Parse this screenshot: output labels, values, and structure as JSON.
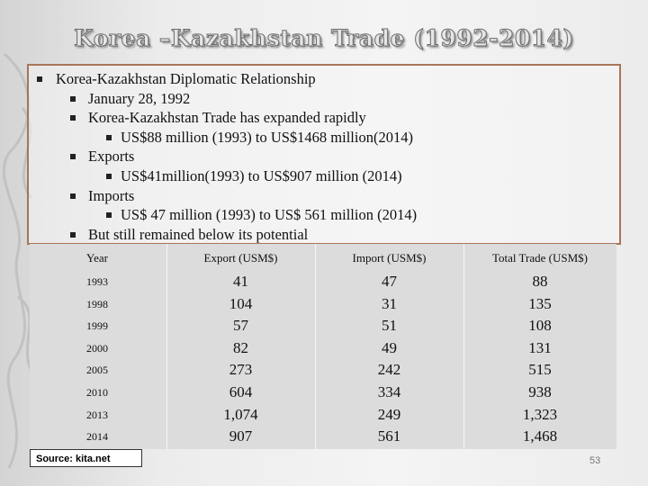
{
  "title": "Korea –Kazakhstan Trade (1992-2014)",
  "bullets": [
    {
      "level": 1,
      "text": "Korea-Kazakhstan Diplomatic Relationship"
    },
    {
      "level": 2,
      "text": "January 28, 1992"
    },
    {
      "level": 2,
      "text": "Korea-Kazakhstan Trade has expanded rapidly"
    },
    {
      "level": 3,
      "text": "US$88 million (1993) to US$1468 million(2014)"
    },
    {
      "level": 2,
      "text": "Exports"
    },
    {
      "level": 3,
      "text": "US$41million(1993) to US$907 million (2014)"
    },
    {
      "level": 2,
      "text": "Imports"
    },
    {
      "level": 3,
      "text": "US$ 47 million (1993) to US$ 561 million (2014)"
    },
    {
      "level": 2,
      "text": "But still remained below its potential"
    }
  ],
  "table": {
    "header": [
      "Year",
      "Export (USM$)",
      "Import (USM$)",
      "Total Trade (USM$)"
    ],
    "rows": [
      [
        "1993",
        "41",
        "47",
        "88"
      ],
      [
        "1998",
        "104",
        "31",
        "135"
      ],
      [
        "1999",
        "57",
        "51",
        "108"
      ],
      [
        "2000",
        "82",
        "49",
        "131"
      ],
      [
        "2005",
        "273",
        "242",
        "515"
      ],
      [
        "2010",
        "604",
        "334",
        "938"
      ],
      [
        "2013",
        "1,074",
        "249",
        "1,323"
      ],
      [
        "2014",
        "907",
        "561",
        "1,468"
      ]
    ]
  },
  "source": "Source: kita.net",
  "page_number": "53"
}
